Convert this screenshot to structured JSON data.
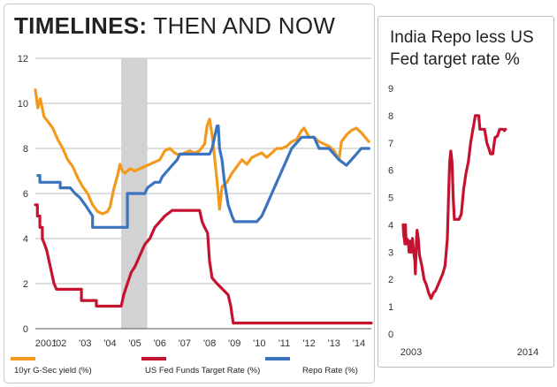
{
  "main_title_bold": "TIMELINES:",
  "main_title_rest": " THEN AND NOW",
  "chart_data": [
    {
      "type": "line",
      "title": "TIMELINES: THEN AND NOW",
      "xlim": [
        2001,
        2014.5
      ],
      "ylim": [
        0,
        12
      ],
      "x_tick_labels": [
        "2001",
        "'02",
        "'03",
        "'04",
        "'05",
        "'06",
        "'07",
        "'08",
        "'09",
        "'10",
        "'11",
        "'12",
        "'13",
        "'14"
      ],
      "x_tick_values": [
        2001,
        2002,
        2003,
        2004,
        2005,
        2006,
        2007,
        2008,
        2009,
        2010,
        2011,
        2012,
        2013,
        2014
      ],
      "y_ticks": [
        0,
        2,
        4,
        6,
        8,
        10,
        12
      ],
      "grid": true,
      "shaded_band": [
        2004.45,
        2005.5
      ],
      "legend_position": "bottom",
      "series": [
        {
          "name": "10yr G-Sec yield (%)",
          "color": "#f39a1e",
          "points": [
            [
              2001.0,
              10.6
            ],
            [
              2001.1,
              9.8
            ],
            [
              2001.2,
              10.2
            ],
            [
              2001.35,
              9.4
            ],
            [
              2001.5,
              9.2
            ],
            [
              2001.7,
              8.9
            ],
            [
              2001.9,
              8.4
            ],
            [
              2002.1,
              8.0
            ],
            [
              2002.3,
              7.5
            ],
            [
              2002.5,
              7.2
            ],
            [
              2002.7,
              6.7
            ],
            [
              2002.9,
              6.3
            ],
            [
              2003.1,
              6.0
            ],
            [
              2003.3,
              5.5
            ],
            [
              2003.5,
              5.2
            ],
            [
              2003.7,
              5.1
            ],
            [
              2003.9,
              5.2
            ],
            [
              2004.0,
              5.4
            ],
            [
              2004.15,
              6.2
            ],
            [
              2004.3,
              6.8
            ],
            [
              2004.4,
              7.3
            ],
            [
              2004.5,
              7.0
            ],
            [
              2004.6,
              6.9
            ],
            [
              2004.8,
              7.1
            ],
            [
              2005.0,
              7.0
            ],
            [
              2005.2,
              7.1
            ],
            [
              2005.4,
              7.2
            ],
            [
              2005.6,
              7.3
            ],
            [
              2005.8,
              7.4
            ],
            [
              2006.0,
              7.5
            ],
            [
              2006.2,
              7.9
            ],
            [
              2006.4,
              8.0
            ],
            [
              2006.6,
              7.8
            ],
            [
              2006.8,
              7.7
            ],
            [
              2007.0,
              7.8
            ],
            [
              2007.2,
              7.9
            ],
            [
              2007.4,
              7.8
            ],
            [
              2007.6,
              7.9
            ],
            [
              2007.8,
              8.2
            ],
            [
              2007.9,
              9.0
            ],
            [
              2008.0,
              9.3
            ],
            [
              2008.1,
              8.6
            ],
            [
              2008.2,
              7.6
            ],
            [
              2008.35,
              6.0
            ],
            [
              2008.4,
              5.3
            ],
            [
              2008.5,
              6.3
            ],
            [
              2008.7,
              6.5
            ],
            [
              2008.9,
              6.9
            ],
            [
              2009.1,
              7.2
            ],
            [
              2009.3,
              7.5
            ],
            [
              2009.5,
              7.3
            ],
            [
              2009.7,
              7.6
            ],
            [
              2009.9,
              7.7
            ],
            [
              2010.1,
              7.8
            ],
            [
              2010.3,
              7.6
            ],
            [
              2010.5,
              7.8
            ],
            [
              2010.7,
              8.0
            ],
            [
              2010.9,
              8.0
            ],
            [
              2011.1,
              8.1
            ],
            [
              2011.3,
              8.3
            ],
            [
              2011.5,
              8.4
            ],
            [
              2011.7,
              8.8
            ],
            [
              2011.8,
              8.9
            ],
            [
              2012.0,
              8.5
            ],
            [
              2012.2,
              8.5
            ],
            [
              2012.4,
              8.3
            ],
            [
              2012.6,
              8.2
            ],
            [
              2012.8,
              8.1
            ],
            [
              2013.0,
              7.9
            ],
            [
              2013.2,
              7.5
            ],
            [
              2013.3,
              8.3
            ],
            [
              2013.5,
              8.6
            ],
            [
              2013.7,
              8.8
            ],
            [
              2013.9,
              8.9
            ],
            [
              2014.1,
              8.7
            ],
            [
              2014.25,
              8.5
            ],
            [
              2014.4,
              8.3
            ]
          ]
        },
        {
          "name": "US Fed Funds Target Rate (%)",
          "color": "#c4122f",
          "points": [
            [
              2001.0,
              5.5
            ],
            [
              2001.08,
              5.5
            ],
            [
              2001.08,
              5.0
            ],
            [
              2001.18,
              5.0
            ],
            [
              2001.18,
              4.5
            ],
            [
              2001.28,
              4.5
            ],
            [
              2001.28,
              4.0
            ],
            [
              2001.35,
              3.8
            ],
            [
              2001.45,
              3.5
            ],
            [
              2001.55,
              3.0
            ],
            [
              2001.65,
              2.5
            ],
            [
              2001.75,
              2.0
            ],
            [
              2001.85,
              1.75
            ],
            [
              2002.85,
              1.75
            ],
            [
              2002.85,
              1.25
            ],
            [
              2003.45,
              1.25
            ],
            [
              2003.45,
              1.0
            ],
            [
              2004.45,
              1.0
            ],
            [
              2004.55,
              1.5
            ],
            [
              2004.7,
              2.0
            ],
            [
              2004.85,
              2.5
            ],
            [
              2005.0,
              2.75
            ],
            [
              2005.2,
              3.25
            ],
            [
              2005.4,
              3.75
            ],
            [
              2005.6,
              4.0
            ],
            [
              2005.8,
              4.5
            ],
            [
              2006.0,
              4.75
            ],
            [
              2006.2,
              5.0
            ],
            [
              2006.5,
              5.25
            ],
            [
              2007.6,
              5.25
            ],
            [
              2007.7,
              4.75
            ],
            [
              2007.8,
              4.5
            ],
            [
              2007.92,
              4.25
            ],
            [
              2008.0,
              3.0
            ],
            [
              2008.1,
              2.25
            ],
            [
              2008.3,
              2.0
            ],
            [
              2008.75,
              1.5
            ],
            [
              2008.85,
              1.0
            ],
            [
              2008.95,
              0.25
            ],
            [
              2014.5,
              0.25
            ]
          ]
        },
        {
          "name": "Repo Rate (%)",
          "color": "#3b73bf",
          "points": [
            [
              2001.1,
              6.8
            ],
            [
              2001.18,
              6.8
            ],
            [
              2001.18,
              6.5
            ],
            [
              2002.0,
              6.5
            ],
            [
              2002.0,
              6.25
            ],
            [
              2002.4,
              6.25
            ],
            [
              2002.6,
              6.0
            ],
            [
              2002.8,
              5.8
            ],
            [
              2003.0,
              5.5
            ],
            [
              2003.3,
              5.0
            ],
            [
              2003.3,
              4.5
            ],
            [
              2004.7,
              4.5
            ],
            [
              2004.7,
              6.0
            ],
            [
              2005.4,
              6.0
            ],
            [
              2005.5,
              6.25
            ],
            [
              2005.8,
              6.5
            ],
            [
              2006.0,
              6.5
            ],
            [
              2006.1,
              6.75
            ],
            [
              2006.3,
              7.0
            ],
            [
              2006.5,
              7.25
            ],
            [
              2006.7,
              7.5
            ],
            [
              2006.8,
              7.75
            ],
            [
              2008.0,
              7.75
            ],
            [
              2008.1,
              8.0
            ],
            [
              2008.2,
              8.5
            ],
            [
              2008.3,
              9.0
            ],
            [
              2008.35,
              9.0
            ],
            [
              2008.4,
              8.0
            ],
            [
              2008.5,
              7.5
            ],
            [
              2008.6,
              6.5
            ],
            [
              2008.75,
              5.5
            ],
            [
              2008.9,
              5.0
            ],
            [
              2009.0,
              4.75
            ],
            [
              2009.9,
              4.75
            ],
            [
              2010.1,
              5.0
            ],
            [
              2010.3,
              5.5
            ],
            [
              2010.5,
              6.0
            ],
            [
              2010.7,
              6.5
            ],
            [
              2010.9,
              7.0
            ],
            [
              2011.1,
              7.5
            ],
            [
              2011.3,
              8.0
            ],
            [
              2011.5,
              8.25
            ],
            [
              2011.7,
              8.5
            ],
            [
              2012.2,
              8.5
            ],
            [
              2012.4,
              8.0
            ],
            [
              2012.8,
              8.0
            ],
            [
              2013.0,
              7.75
            ],
            [
              2013.2,
              7.5
            ],
            [
              2013.5,
              7.25
            ],
            [
              2013.7,
              7.5
            ],
            [
              2013.9,
              7.75
            ],
            [
              2014.1,
              8.0
            ],
            [
              2014.4,
              8.0
            ]
          ]
        }
      ]
    },
    {
      "type": "line",
      "title": "India Repo less US Fed target rate %",
      "xlim": [
        2003,
        2014.4
      ],
      "ylim": [
        0,
        9
      ],
      "x_tick_labels": [
        "2003",
        "2014"
      ],
      "x_tick_values": [
        2003,
        2014
      ],
      "y_ticks": [
        0,
        1,
        2,
        3,
        4,
        5,
        6,
        7,
        8,
        9
      ],
      "grid": false,
      "series": [
        {
          "color": "#c4122f",
          "points": [
            [
              2003.0,
              4.0
            ],
            [
              2003.05,
              3.6
            ],
            [
              2003.1,
              3.5
            ],
            [
              2003.15,
              3.3
            ],
            [
              2003.2,
              4.0
            ],
            [
              2003.25,
              3.3
            ],
            [
              2003.3,
              3.5
            ],
            [
              2003.45,
              3.4
            ],
            [
              2003.5,
              3.0
            ],
            [
              2003.6,
              3.4
            ],
            [
              2003.7,
              3.0
            ],
            [
              2003.8,
              3.5
            ],
            [
              2003.9,
              3.0
            ],
            [
              2004.0,
              2.7
            ],
            [
              2004.05,
              2.2
            ],
            [
              2004.15,
              3.5
            ],
            [
              2004.2,
              3.8
            ],
            [
              2004.3,
              3.5
            ],
            [
              2004.4,
              2.9
            ],
            [
              2004.6,
              2.5
            ],
            [
              2004.8,
              2.0
            ],
            [
              2005.0,
              1.8
            ],
            [
              2005.2,
              1.5
            ],
            [
              2005.4,
              1.3
            ],
            [
              2005.6,
              1.5
            ],
            [
              2005.8,
              1.6
            ],
            [
              2006.0,
              1.8
            ],
            [
              2006.2,
              2.0
            ],
            [
              2006.4,
              2.2
            ],
            [
              2006.6,
              2.5
            ],
            [
              2006.8,
              3.5
            ],
            [
              2006.9,
              5.0
            ],
            [
              2007.0,
              6.3
            ],
            [
              2007.1,
              6.7
            ],
            [
              2007.2,
              6.3
            ],
            [
              2007.3,
              5.0
            ],
            [
              2007.4,
              4.2
            ],
            [
              2007.6,
              4.2
            ],
            [
              2007.8,
              4.2
            ],
            [
              2008.0,
              4.4
            ],
            [
              2008.2,
              5.3
            ],
            [
              2008.4,
              5.9
            ],
            [
              2008.6,
              6.3
            ],
            [
              2008.8,
              7.0
            ],
            [
              2009.0,
              7.5
            ],
            [
              2009.1,
              7.75
            ],
            [
              2009.2,
              8.0
            ],
            [
              2009.5,
              8.0
            ],
            [
              2009.6,
              7.5
            ],
            [
              2010.0,
              7.5
            ],
            [
              2010.2,
              7.0
            ],
            [
              2010.4,
              6.75
            ],
            [
              2010.5,
              6.6
            ],
            [
              2010.7,
              6.6
            ],
            [
              2010.9,
              7.2
            ],
            [
              2011.1,
              7.25
            ],
            [
              2011.3,
              7.5
            ],
            [
              2011.6,
              7.5
            ],
            [
              2011.7,
              7.45
            ],
            [
              2011.8,
              7.5
            ]
          ]
        }
      ]
    }
  ]
}
